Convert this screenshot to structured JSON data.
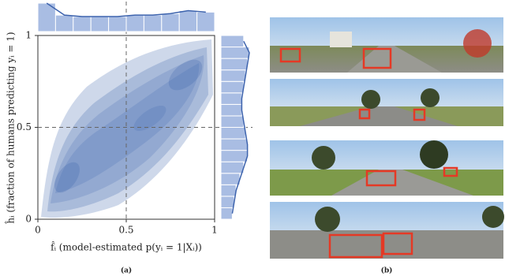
{
  "panel_a": {
    "xlabel": "f̂ᵢ (model-estimated p(yᵢ = 1|Xᵢ))",
    "ylabel": "ĥᵢ (fraction of humans predicting yᵢ = 1)",
    "xlim": [
      0,
      1
    ],
    "ylim": [
      0,
      1
    ],
    "xticks": [
      0,
      0.5,
      1
    ],
    "yticks": [
      0,
      0.5,
      1
    ],
    "x_marginal_hist": [
      0.95,
      0.55,
      0.5,
      0.5,
      0.5,
      0.55,
      0.55,
      0.6,
      0.7,
      0.65
    ],
    "y_marginal_hist": [
      0.3,
      0.35,
      0.4,
      0.5,
      0.6,
      0.7,
      0.7,
      0.65,
      0.6,
      0.55,
      0.55,
      0.6,
      0.65,
      0.7,
      0.75,
      0.6
    ],
    "caption": "(a)"
  },
  "panel_b": {
    "caption": "(b)"
  }
}
